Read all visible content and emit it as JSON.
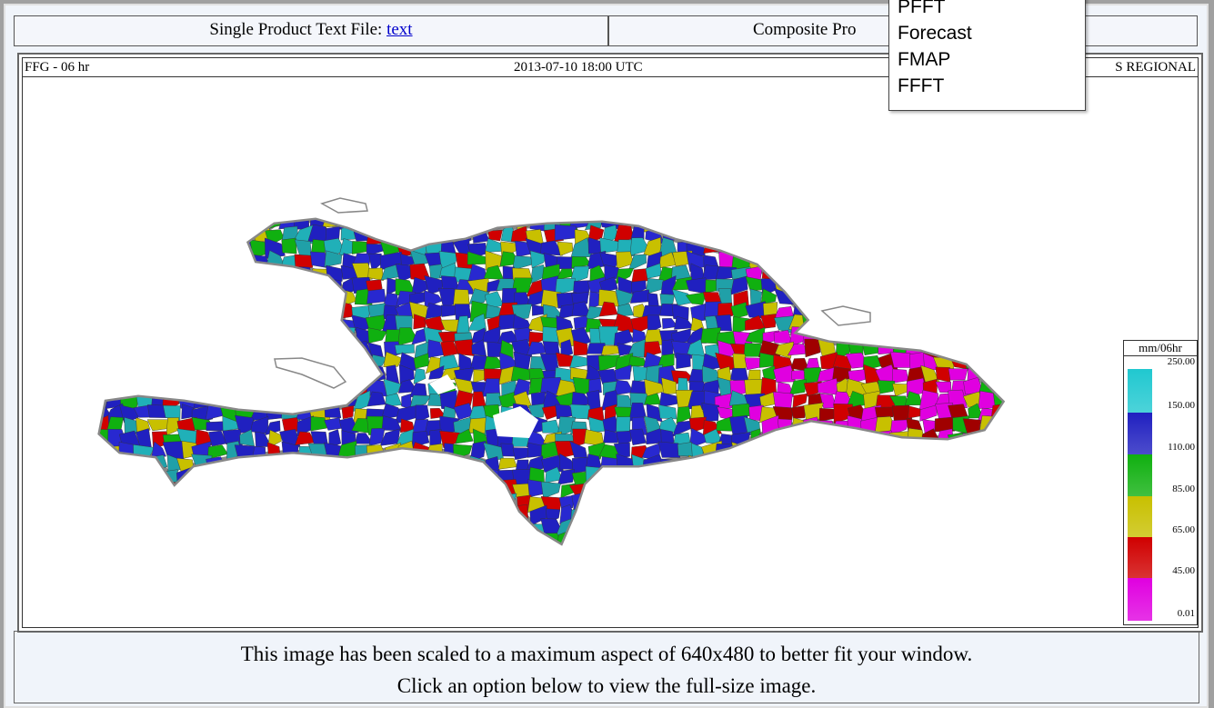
{
  "top_row": {
    "single_label": "Single Product Text File:",
    "single_link": "text",
    "composite_label": "Composite Pro"
  },
  "menu": {
    "items": [
      "PFFT",
      "Forecast",
      "FMAP",
      "FFFT"
    ]
  },
  "image_header": {
    "product": "FFG - 06 hr",
    "time": "2013-07-10 18:00 UTC",
    "region": "S REGIONAL"
  },
  "legend": {
    "unit": "mm/06hr",
    "ticks": [
      "250.00",
      "150.00",
      "110.00",
      "85.00",
      "65.00",
      "45.00",
      "0.01"
    ]
  },
  "notice": {
    "line1": "This image has been scaled to a maximum aspect of 640x480 to better fit your window.",
    "line2": "Click an option below to view the full-size image."
  }
}
